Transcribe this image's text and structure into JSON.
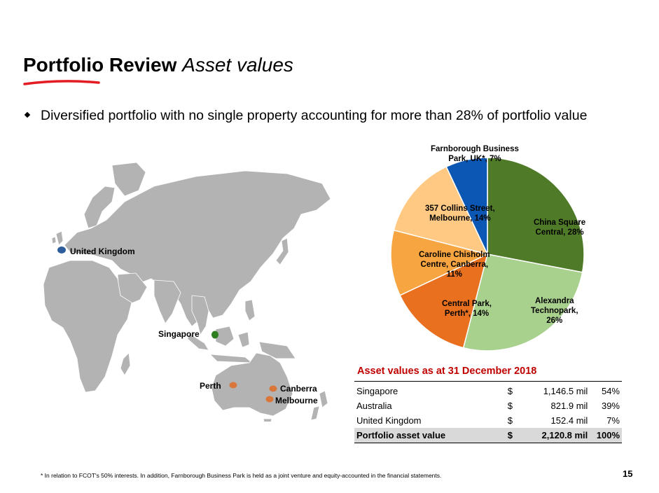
{
  "header": {
    "title_bold": "Portfolio Review",
    "title_italic": "Asset values",
    "accent_color": "#e31b23"
  },
  "bullet": {
    "text": "Diversified portfolio with no single property accounting for more than 28% of portfolio value"
  },
  "map": {
    "labels": {
      "uk": "United Kingdom",
      "singapore": "Singapore",
      "perth": "Perth",
      "canberra": "Canberra",
      "melbourne": "Melbourne"
    },
    "marker_colors": {
      "uk": "#2e5d9b",
      "singapore": "#2e7d1f",
      "australia": "#d9773a"
    }
  },
  "chart_data": {
    "type": "pie",
    "slices": [
      {
        "label": "China Square\nCentral, 28%",
        "value": 28,
        "color": "#4f7a28"
      },
      {
        "label": "Alexandra\nTechnopark,\n26%",
        "value": 26,
        "color": "#a9d18e"
      },
      {
        "label": "Central Park,\nPerth*, 14%",
        "value": 14,
        "color": "#e8701f"
      },
      {
        "label": "Caroline Chisholm\nCentre, Canberra,\n11%",
        "value": 11,
        "color": "#f7a541"
      },
      {
        "label": "357 Collins Street,\nMelbourne, 14%",
        "value": 14,
        "color": "#ffc983"
      },
      {
        "label": "Farnborough Business\nPark, UK*, 7%",
        "value": 7,
        "color": "#0b57b3"
      }
    ]
  },
  "table": {
    "title": "Asset values as at 31 December 2018",
    "rows": [
      {
        "name": "Singapore",
        "currency": "$",
        "value": "1,146.5 mil",
        "pct": "54%"
      },
      {
        "name": "Australia",
        "currency": "$",
        "value": "821.9 mil",
        "pct": "39%"
      },
      {
        "name": "United Kingdom",
        "currency": "$",
        "value": "152.4 mil",
        "pct": "7%"
      }
    ],
    "total": {
      "name": "Portfolio asset value",
      "currency": "$",
      "value": "2,120.8 mil",
      "pct": "100%"
    }
  },
  "footer": {
    "footnote": "*   In relation to FCOT's 50% interests. In addition, Farnborough Business Park is held as a joint venture and equity-accounted in the financial statements.",
    "page_number": "15"
  }
}
